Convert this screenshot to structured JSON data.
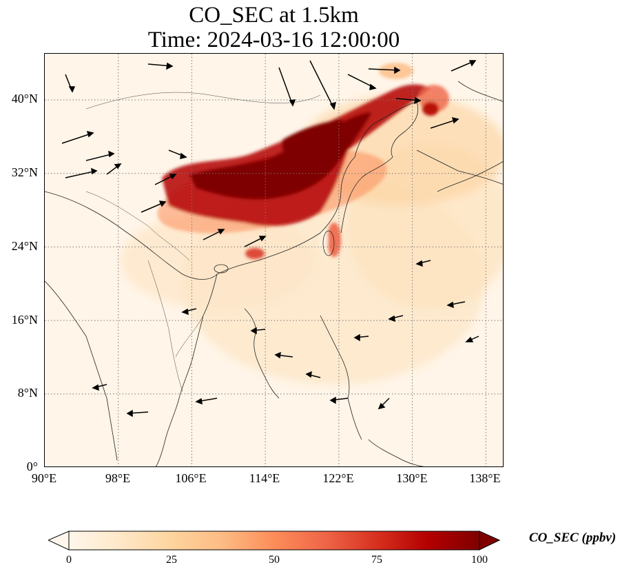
{
  "title": {
    "line1": "CO_SEC at 1.5km",
    "line2": "Time: 2024-03-16 12:00:00"
  },
  "axes": {
    "x_ticks": [
      "90°E",
      "98°E",
      "106°E",
      "114°E",
      "122°E",
      "130°E",
      "138°E"
    ],
    "y_ticks": [
      "40°N",
      "32°N",
      "24°N",
      "16°N",
      "8°N",
      "0°"
    ],
    "lon_range": [
      90,
      140
    ],
    "lat_range": [
      0,
      45
    ],
    "grid": "dotted"
  },
  "colorbar": {
    "label": "CO_SEC (ppbv)",
    "ticks": [
      "0",
      "25",
      "50",
      "75",
      "100"
    ],
    "range": [
      0,
      100
    ],
    "colormap": "OrRd",
    "extend": "both",
    "colors": [
      "#fff7ec",
      "#fee8c8",
      "#fdd49e",
      "#fdbb84",
      "#fc8d59",
      "#ef6548",
      "#d7301f",
      "#b30000",
      "#7f0000"
    ]
  },
  "map": {
    "land_color": "#ffffff",
    "background_concentration": 3,
    "plume_core_color": "#7f0000"
  }
}
